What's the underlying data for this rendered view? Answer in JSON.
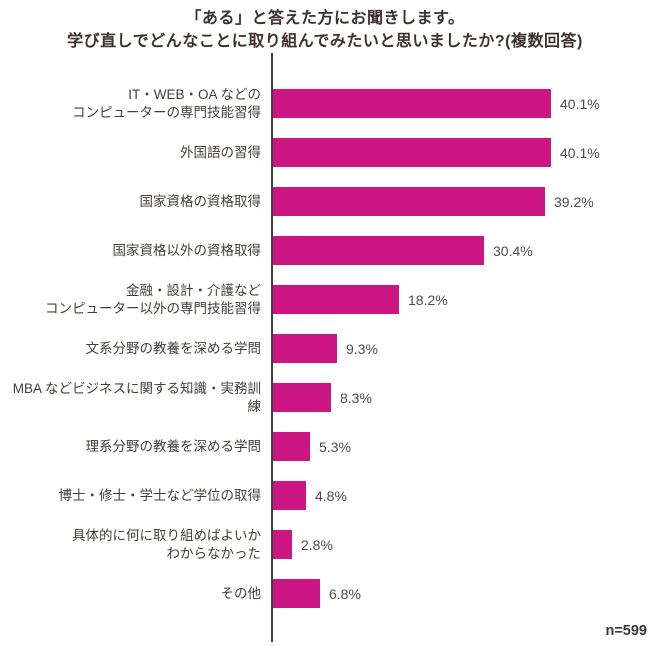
{
  "colors": {
    "bar": "#CB1582",
    "axis": "#3F3F3F"
  },
  "footer": {
    "sample_size": "n=599"
  },
  "chart_data": {
    "type": "bar",
    "orientation": "horizontal",
    "title_lines": [
      "「ある」と答えた方にお聞きします。",
      "学び直しでどんなことに取り組んでみたいと思いましたか?(複数回答)"
    ],
    "title": "「ある」と答えた方にお聞きします。学び直しでどんなことに取り組んでみたいと思いましたか?(複数回答)",
    "categories": [
      "IT・WEB・OA などの\nコンピューターの専門技能習得",
      "外国語の習得",
      "国家資格の資格取得",
      "国家資格以外の資格取得",
      "金融・設計・介護など\nコンピューター以外の専門技能習得",
      "文系分野の教養を深める学問",
      "MBA などビジネスに関する知識・実務訓練",
      "理系分野の教養を深める学問",
      "博士・修士・学士など学位の取得",
      "具体的に何に取り組めばよいか\nわからなかった",
      "その他"
    ],
    "values": [
      40.1,
      40.1,
      39.2,
      30.4,
      18.2,
      9.3,
      8.3,
      5.3,
      4.8,
      2.8,
      6.8
    ],
    "value_labels": [
      "40.1%",
      "40.1%",
      "39.2%",
      "30.4%",
      "18.2%",
      "9.3%",
      "8.3%",
      "5.3%",
      "4.8%",
      "2.8%",
      "6.8%"
    ],
    "xlabel": "",
    "ylabel": "",
    "xlim": [
      0,
      45
    ],
    "grid": false,
    "legend": "none",
    "sample_size": 599
  }
}
